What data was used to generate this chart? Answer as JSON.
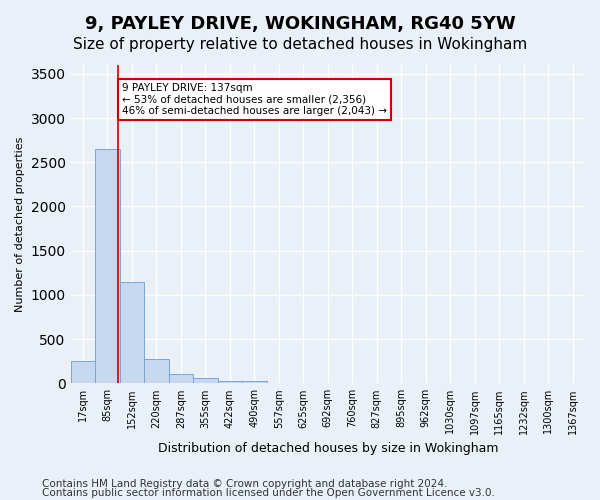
{
  "title": "9, PAYLEY DRIVE, WOKINGHAM, RG40 5YW",
  "subtitle": "Size of property relative to detached houses in Wokingham",
  "xlabel": "Distribution of detached houses by size in Wokingham",
  "ylabel": "Number of detached properties",
  "footer1": "Contains HM Land Registry data © Crown copyright and database right 2024.",
  "footer2": "Contains public sector information licensed under the Open Government Licence v3.0.",
  "bins": [
    "17sqm",
    "85sqm",
    "152sqm",
    "220sqm",
    "287sqm",
    "355sqm",
    "422sqm",
    "490sqm",
    "557sqm",
    "625sqm",
    "692sqm",
    "760sqm",
    "827sqm",
    "895sqm",
    "962sqm",
    "1030sqm",
    "1097sqm",
    "1165sqm",
    "1232sqm",
    "1300sqm",
    "1367sqm"
  ],
  "values": [
    250,
    2650,
    1150,
    270,
    100,
    55,
    30,
    30,
    0,
    0,
    0,
    0,
    0,
    0,
    0,
    0,
    0,
    0,
    0,
    0,
    0
  ],
  "bar_color": "#c5d8f0",
  "bar_edge_color": "#7aa8d0",
  "vline_x_index": 1.45,
  "vline_color": "#cc0000",
  "annotation_text": "9 PAYLEY DRIVE: 137sqm\n← 53% of detached houses are smaller (2,356)\n46% of semi-detached houses are larger (2,043) →",
  "annotation_box_color": "white",
  "annotation_box_edge": "#cc0000",
  "ylim": [
    0,
    3600
  ],
  "yticks": [
    0,
    500,
    1000,
    1500,
    2000,
    2500,
    3000,
    3500
  ],
  "bg_color": "#eaf0f8",
  "plot_bg_color": "#eaf0f8",
  "grid_color": "white",
  "title_fontsize": 13,
  "subtitle_fontsize": 11,
  "footer_fontsize": 7.5
}
